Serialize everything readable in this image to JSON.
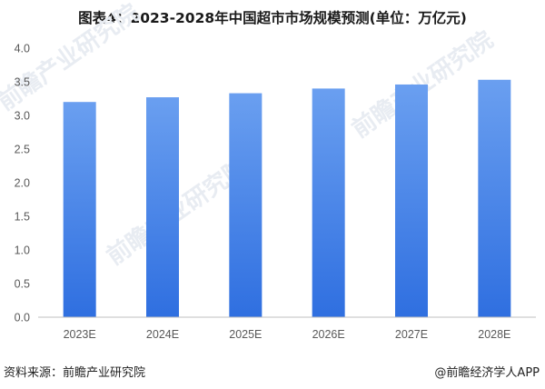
{
  "title": "图表4：2023-2028年中国超市市场规模预测(单位：万亿元)",
  "footer": {
    "source": "资料来源：前瞻产业研究院",
    "brand": "@前瞻经济学人APP"
  },
  "watermark": {
    "text": "前瞻产业研究院"
  },
  "colors": {
    "bar_top": "#6a9ff0",
    "bar_bottom": "#2f6fe0",
    "axis": "#bfbfbf",
    "tick_text": "#595959"
  },
  "chart_data": {
    "type": "bar",
    "categories": [
      "2023E",
      "2024E",
      "2025E",
      "2026E",
      "2027E",
      "2028E"
    ],
    "values": [
      3.2,
      3.27,
      3.33,
      3.4,
      3.46,
      3.53
    ],
    "yticks": [
      "0.0",
      "0.5",
      "1.0",
      "1.5",
      "2.0",
      "2.5",
      "3.0",
      "3.5",
      "4.0"
    ],
    "ylim": [
      0,
      4.0
    ],
    "grid": false,
    "legend": "none"
  }
}
